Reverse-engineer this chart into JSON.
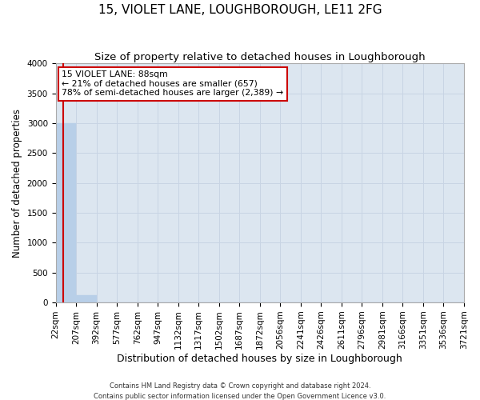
{
  "title": "15, VIOLET LANE, LOUGHBOROUGH, LE11 2FG",
  "subtitle": "Size of property relative to detached houses in Loughborough",
  "xlabel": "Distribution of detached houses by size in Loughborough",
  "ylabel": "Number of detached properties",
  "footer_line1": "Contains HM Land Registry data © Crown copyright and database right 2024.",
  "footer_line2": "Contains public sector information licensed under the Open Government Licence v3.0.",
  "bin_edges": [
    22,
    207,
    392,
    577,
    762,
    947,
    1132,
    1317,
    1502,
    1687,
    1872,
    2056,
    2241,
    2426,
    2611,
    2796,
    2981,
    3166,
    3351,
    3536,
    3721
  ],
  "bar_heights": [
    3000,
    120,
    0,
    0,
    0,
    0,
    0,
    0,
    0,
    0,
    0,
    0,
    0,
    0,
    0,
    0,
    0,
    0,
    0,
    0
  ],
  "bar_color": "#b8cfe8",
  "bar_edgecolor": "#b8cfe8",
  "ylim": [
    0,
    4000
  ],
  "yticks": [
    0,
    500,
    1000,
    1500,
    2000,
    2500,
    3000,
    3500,
    4000
  ],
  "property_size": 88,
  "redline_color": "#cc0000",
  "annotation_line1": "15 VIOLET LANE: 88sqm",
  "annotation_line2": "← 21% of detached houses are smaller (657)",
  "annotation_line3": "78% of semi-detached houses are larger (2,389) →",
  "annotation_box_edgecolor": "#cc0000",
  "annotation_box_facecolor": "#ffffff",
  "background_color": "#ffffff",
  "axes_facecolor": "#dce6f0",
  "grid_color": "#c8d4e4",
  "tick_label_fontsize": 7.5,
  "title_fontsize": 11,
  "subtitle_fontsize": 9.5,
  "ylabel_fontsize": 8.5,
  "xlabel_fontsize": 9
}
